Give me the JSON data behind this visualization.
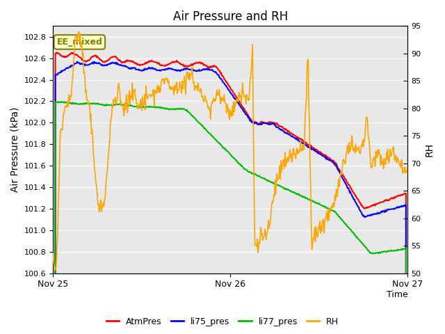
{
  "title": "Air Pressure and RH",
  "xlabel": "Time",
  "ylabel_left": "Air Pressure (kPa)",
  "ylabel_right": "RH",
  "ylim_left": [
    100.6,
    102.9
  ],
  "ylim_right": [
    50,
    95
  ],
  "yticks_left": [
    100.6,
    100.8,
    101.0,
    101.2,
    101.4,
    101.6,
    101.8,
    102.0,
    102.2,
    102.4,
    102.6,
    102.8
  ],
  "yticks_right": [
    50,
    55,
    60,
    65,
    70,
    75,
    80,
    85,
    90,
    95
  ],
  "xtick_labels": [
    "Nov 25",
    "Nov 26",
    "Nov 27"
  ],
  "xtick_pos": [
    0,
    24,
    48
  ],
  "annotation_text": "EE_mixed",
  "annotation_color": "#808000",
  "annotation_bg": "#ffffcc",
  "colors": {
    "AtmPres": "#ff0000",
    "li75_pres": "#0000ff",
    "li77_pres": "#00bb00",
    "RH": "#ffa500"
  },
  "legend_labels": [
    "AtmPres",
    "li75_pres",
    "li77_pres",
    "RH"
  ],
  "plot_bg": "#e8e8e8",
  "grid_color": "#ffffff",
  "figsize": [
    6.4,
    4.8
  ],
  "dpi": 100
}
